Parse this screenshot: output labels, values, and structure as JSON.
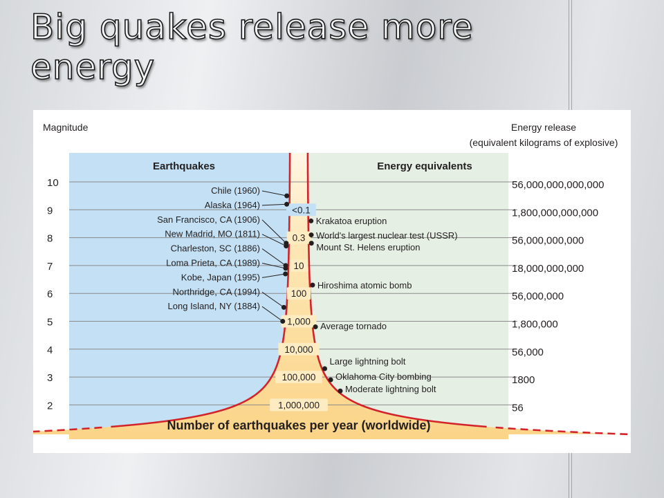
{
  "slide": {
    "title_line1": "Big quakes release more",
    "title_line2": "energy"
  },
  "figure": {
    "left_axis_title": "Magnitude",
    "right_axis_title_line1": "Energy release",
    "right_axis_title_line2": "(equivalent kilograms of explosive)",
    "left_panel_label": "Earthquakes",
    "right_panel_label": "Energy equivalents",
    "bottom_label": "Number of earthquakes per year (worldwide)",
    "magnitudes": [
      "10",
      "9",
      "8",
      "7",
      "6",
      "5",
      "4",
      "3",
      "2"
    ],
    "energy_values": [
      "56,000,000,000,000",
      "1,800,000,000,000",
      "56,000,000,000",
      "18,000,000,000",
      "56,000,000",
      "1,800,000",
      "56,000",
      "1800",
      "56"
    ],
    "frequencies": [
      {
        "label": "<0.1",
        "magnitude": 9
      },
      {
        "label": "0.3",
        "magnitude": 8
      },
      {
        "label": "10",
        "magnitude": 7
      },
      {
        "label": "100",
        "magnitude": 6
      },
      {
        "label": "1,000",
        "magnitude": 5
      },
      {
        "label": "10,000",
        "magnitude": 4
      },
      {
        "label": "100,000",
        "magnitude": 3
      },
      {
        "label": "1,000,000",
        "magnitude": 2
      }
    ],
    "earthquakes": [
      {
        "label": "Chile (1960)",
        "magnitude": 9.5
      },
      {
        "label": "Alaska (1964)",
        "magnitude": 9.2
      },
      {
        "label": "San Francisco, CA (1906)",
        "magnitude": 7.8
      },
      {
        "label": "New Madrid, MO (1811)",
        "magnitude": 7.7
      },
      {
        "label": "Charleston, SC (1886)",
        "magnitude": 7.0
      },
      {
        "label": "Loma Prieta, CA (1989)",
        "magnitude": 6.9
      },
      {
        "label": "Kobe, Japan (1995)",
        "magnitude": 6.7
      },
      {
        "label": "Northridge, CA (1994)",
        "magnitude": 5.5
      },
      {
        "label": "Long Island, NY (1884)",
        "magnitude": 5.0
      }
    ],
    "equivalents": [
      {
        "label": "Krakatoa eruption",
        "magnitude": 8.6
      },
      {
        "label": "World's largest nuclear test (USSR)",
        "magnitude": 8.1
      },
      {
        "label": "Mount St. Helens eruption",
        "magnitude": 7.8
      },
      {
        "label": "Hiroshima atomic bomb",
        "magnitude": 6.3
      },
      {
        "label": "Average tornado",
        "magnitude": 4.8
      },
      {
        "label": "Large lightning bolt",
        "magnitude": 3.3
      },
      {
        "label": "Oklahoma City bombing",
        "magnitude": 2.9
      },
      {
        "label": "Moderate lightning bolt",
        "magnitude": 2.5
      }
    ],
    "colors": {
      "left_panel": "#c3e0f4",
      "right_panel": "#e5efe4",
      "cone_fill": "#fbd488",
      "curve": "#d2232a",
      "grid_line": "#8a8a8a",
      "dot": "#231f20"
    }
  }
}
